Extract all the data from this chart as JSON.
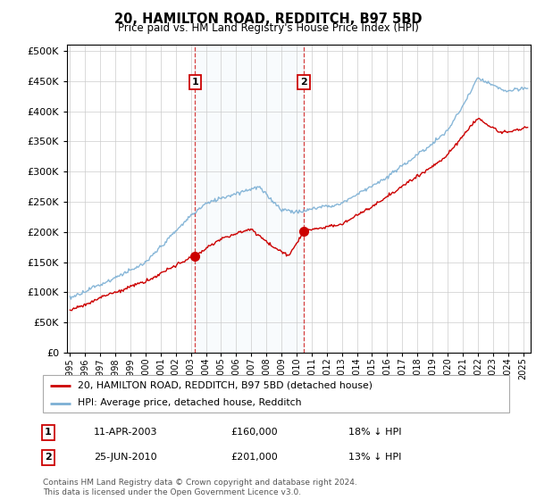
{
  "title": "20, HAMILTON ROAD, REDDITCH, B97 5BD",
  "subtitle": "Price paid vs. HM Land Registry's House Price Index (HPI)",
  "background_color": "#ffffff",
  "grid_color": "#cccccc",
  "hpi_color": "#7bafd4",
  "hpi_fill_color": "#daeaf5",
  "price_color": "#cc0000",
  "purchase1": {
    "label": "1",
    "date_num": 2003.28,
    "price": 160000,
    "date_str": "11-APR-2003",
    "pct": "18%"
  },
  "purchase2": {
    "label": "2",
    "date_num": 2010.48,
    "price": 201000,
    "date_str": "25-JUN-2010",
    "pct": "13%"
  },
  "ylim": [
    0,
    510000
  ],
  "xlim": [
    1994.8,
    2025.5
  ],
  "yticks": [
    0,
    50000,
    100000,
    150000,
    200000,
    250000,
    300000,
    350000,
    400000,
    450000,
    500000
  ],
  "xticks": [
    1995,
    1996,
    1997,
    1998,
    1999,
    2000,
    2001,
    2002,
    2003,
    2004,
    2005,
    2006,
    2007,
    2008,
    2009,
    2010,
    2011,
    2012,
    2013,
    2014,
    2015,
    2016,
    2017,
    2018,
    2019,
    2020,
    2021,
    2022,
    2023,
    2024,
    2025
  ],
  "legend_label1": "20, HAMILTON ROAD, REDDITCH, B97 5BD (detached house)",
  "legend_label2": "HPI: Average price, detached house, Redditch",
  "footer1": "Contains HM Land Registry data © Crown copyright and database right 2024.",
  "footer2": "This data is licensed under the Open Government Licence v3.0."
}
